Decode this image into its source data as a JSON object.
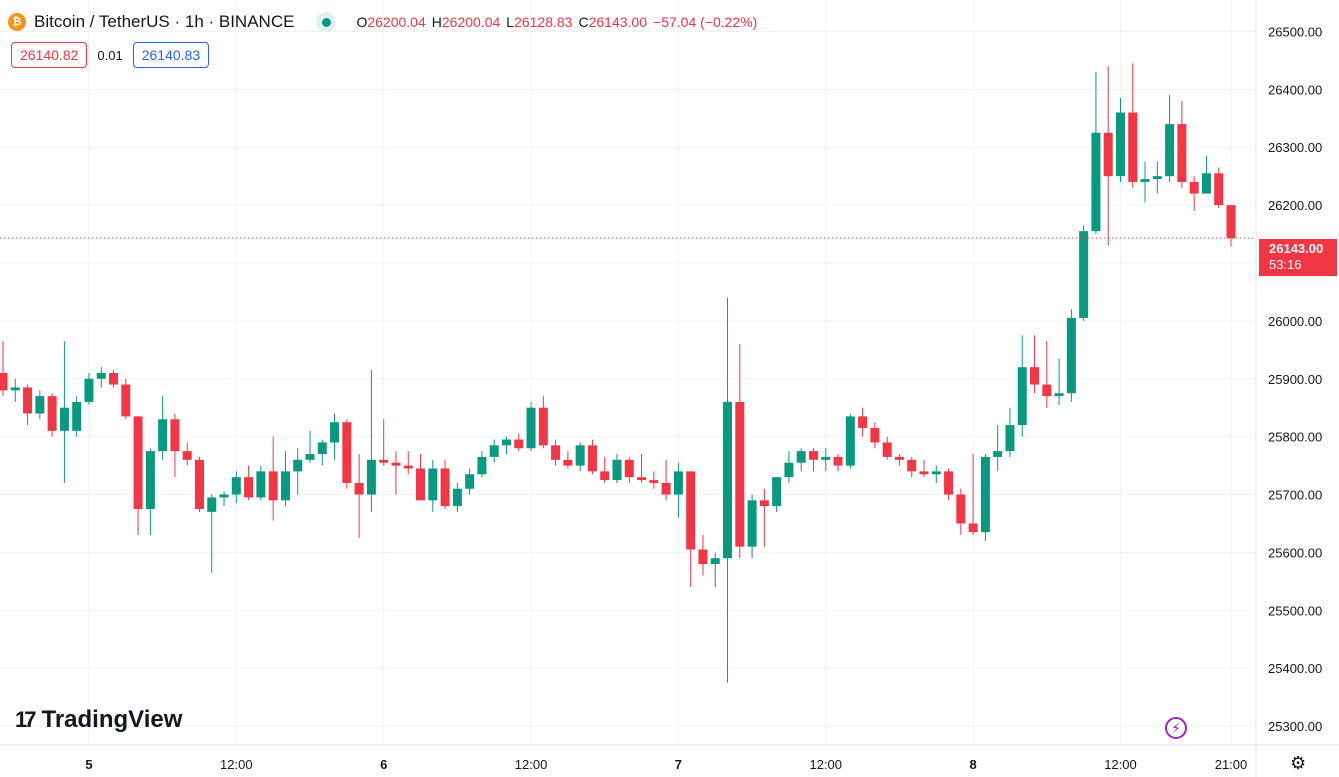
{
  "header": {
    "symbol": "Bitcoin / TetherUS · 1h · BINANCE",
    "coin_glyph": "₿",
    "ohlc": {
      "o_label": "O",
      "o": "26200.04",
      "h_label": "H",
      "h": "26200.04",
      "l_label": "L",
      "l": "26128.83",
      "c_label": "C",
      "c": "26143.00",
      "change": "−57.04 (−0.22%)"
    }
  },
  "quote": {
    "sell": "26140.82",
    "spread": "0.01",
    "buy": "26140.83"
  },
  "last_price": {
    "price": "26143.00",
    "countdown": "53:16"
  },
  "branding": {
    "logo_mark": "17",
    "logo_text": "TradingView"
  },
  "icons": {
    "bolt": "lightning-icon",
    "settings": "gear-icon"
  },
  "colors": {
    "up": "#089981",
    "down": "#f23645",
    "accent": "#2962ff",
    "grid": "#f0f3fa"
  },
  "chart_data": {
    "type": "candlestick",
    "ylim": [
      25250,
      26525
    ],
    "y_ticks": [
      25300,
      25400,
      25500,
      25600,
      25700,
      25800,
      25900,
      26000,
      26100,
      26200,
      26300,
      26400,
      26500
    ],
    "y_tick_labels": [
      "25300.00",
      "25400.00",
      "25500.00",
      "25600.00",
      "25700.00",
      "25800.00",
      "25900.00",
      "26000.00",
      "26100.00",
      "26200.00",
      "26300.00",
      "26400.00",
      "26500.00"
    ],
    "x_ticks": [
      {
        "index": 7,
        "label": "5"
      },
      {
        "index": 19,
        "label": "12:00"
      },
      {
        "index": 31,
        "label": "6"
      },
      {
        "index": 43,
        "label": "12:00"
      },
      {
        "index": 55,
        "label": "7"
      },
      {
        "index": 67,
        "label": "12:00"
      },
      {
        "index": 79,
        "label": "8"
      },
      {
        "index": 91,
        "label": "12:00"
      },
      {
        "index": 100,
        "label": "21:00"
      }
    ],
    "last_price_line": 26143.0,
    "candles": [
      [
        25910,
        25965,
        25870,
        25880
      ],
      [
        25880,
        25900,
        25860,
        25885
      ],
      [
        25885,
        25890,
        25820,
        25840
      ],
      [
        25840,
        25880,
        25830,
        25870
      ],
      [
        25870,
        25875,
        25800,
        25810
      ],
      [
        25810,
        25965,
        25720,
        25850
      ],
      [
        25810,
        25870,
        25800,
        25860
      ],
      [
        25860,
        25910,
        25855,
        25900
      ],
      [
        25900,
        25920,
        25885,
        25910
      ],
      [
        25910,
        25915,
        25885,
        25890
      ],
      [
        25890,
        25900,
        25830,
        25835
      ],
      [
        25835,
        25835,
        25630,
        25675
      ],
      [
        25675,
        25780,
        25630,
        25775
      ],
      [
        25775,
        25870,
        25760,
        25830
      ],
      [
        25830,
        25840,
        25730,
        25775
      ],
      [
        25775,
        25790,
        25750,
        25760
      ],
      [
        25760,
        25765,
        25670,
        25675
      ],
      [
        25670,
        25700,
        25565,
        25695
      ],
      [
        25695,
        25705,
        25680,
        25700
      ],
      [
        25700,
        25740,
        25685,
        25730
      ],
      [
        25730,
        25750,
        25690,
        25695
      ],
      [
        25695,
        25750,
        25690,
        25740
      ],
      [
        25740,
        25800,
        25655,
        25690
      ],
      [
        25690,
        25775,
        25680,
        25740
      ],
      [
        25740,
        25780,
        25700,
        25760
      ],
      [
        25760,
        25810,
        25755,
        25770
      ],
      [
        25770,
        25795,
        25750,
        25790
      ],
      [
        25790,
        25840,
        25760,
        25825
      ],
      [
        25825,
        25830,
        25710,
        25720
      ],
      [
        25720,
        25770,
        25625,
        25700
      ],
      [
        25700,
        25915,
        25670,
        25760
      ],
      [
        25760,
        25830,
        25750,
        25755
      ],
      [
        25755,
        25775,
        25700,
        25750
      ],
      [
        25750,
        25775,
        25735,
        25745
      ],
      [
        25745,
        25770,
        25700,
        25690
      ],
      [
        25690,
        25760,
        25670,
        25745
      ],
      [
        25745,
        25760,
        25675,
        25680
      ],
      [
        25680,
        25720,
        25670,
        25710
      ],
      [
        25710,
        25745,
        25700,
        25735
      ],
      [
        25735,
        25775,
        25730,
        25765
      ],
      [
        25765,
        25795,
        25755,
        25785
      ],
      [
        25785,
        25800,
        25770,
        25795
      ],
      [
        25795,
        25805,
        25775,
        25780
      ],
      [
        25780,
        25860,
        25775,
        25850
      ],
      [
        25850,
        25870,
        25780,
        25785
      ],
      [
        25785,
        25795,
        25750,
        25760
      ],
      [
        25760,
        25775,
        25745,
        25750
      ],
      [
        25750,
        25790,
        25740,
        25785
      ],
      [
        25785,
        25795,
        25735,
        25740
      ],
      [
        25740,
        25765,
        25720,
        25725
      ],
      [
        25725,
        25770,
        25720,
        25760
      ],
      [
        25760,
        25765,
        25720,
        25730
      ],
      [
        25730,
        25770,
        25720,
        25725
      ],
      [
        25725,
        25740,
        25710,
        25720
      ],
      [
        25720,
        25760,
        25690,
        25700
      ],
      [
        25700,
        25755,
        25660,
        25740
      ],
      [
        25740,
        25740,
        25540,
        25605
      ],
      [
        25605,
        25630,
        25560,
        25580
      ],
      [
        25580,
        25600,
        25540,
        25590
      ],
      [
        25590,
        26040,
        25375,
        25860
      ],
      [
        25860,
        25960,
        25590,
        25610
      ],
      [
        25610,
        25700,
        25590,
        25690
      ],
      [
        25690,
        25710,
        25610,
        25680
      ],
      [
        25680,
        25730,
        25670,
        25730
      ],
      [
        25730,
        25775,
        25720,
        25755
      ],
      [
        25755,
        25780,
        25740,
        25775
      ],
      [
        25775,
        25780,
        25740,
        25760
      ],
      [
        25760,
        25780,
        25740,
        25765
      ],
      [
        25765,
        25770,
        25740,
        25750
      ],
      [
        25750,
        25840,
        25745,
        25835
      ],
      [
        25835,
        25850,
        25800,
        25815
      ],
      [
        25815,
        25825,
        25780,
        25790
      ],
      [
        25790,
        25800,
        25760,
        25765
      ],
      [
        25765,
        25770,
        25750,
        25760
      ],
      [
        25760,
        25765,
        25730,
        25740
      ],
      [
        25740,
        25760,
        25730,
        25735
      ],
      [
        25735,
        25750,
        25720,
        25740
      ],
      [
        25740,
        25745,
        25690,
        25700
      ],
      [
        25700,
        25710,
        25630,
        25650
      ],
      [
        25650,
        25770,
        25630,
        25635
      ],
      [
        25635,
        25770,
        25620,
        25765
      ],
      [
        25765,
        25820,
        25740,
        25775
      ],
      [
        25775,
        25850,
        25765,
        25820
      ],
      [
        25820,
        25975,
        25800,
        25920
      ],
      [
        25920,
        25975,
        25875,
        25890
      ],
      [
        25890,
        25965,
        25850,
        25870
      ],
      [
        25870,
        25935,
        25855,
        25875
      ],
      [
        25875,
        26020,
        25860,
        26005
      ],
      [
        26005,
        26165,
        26000,
        26155
      ],
      [
        26155,
        26430,
        26150,
        26325
      ],
      [
        26325,
        26440,
        26130,
        26250
      ],
      [
        26250,
        26385,
        26240,
        26360
      ],
      [
        26360,
        26445,
        26230,
        26240
      ],
      [
        26240,
        26275,
        26205,
        26245
      ],
      [
        26245,
        26275,
        26220,
        26250
      ],
      [
        26250,
        26390,
        26240,
        26340
      ],
      [
        26340,
        26380,
        26230,
        26240
      ],
      [
        26240,
        26250,
        26190,
        26220
      ],
      [
        26220,
        26285,
        26220,
        26255
      ],
      [
        26255,
        26265,
        26195,
        26200
      ],
      [
        26200,
        26200,
        26128.83,
        26143
      ]
    ]
  }
}
